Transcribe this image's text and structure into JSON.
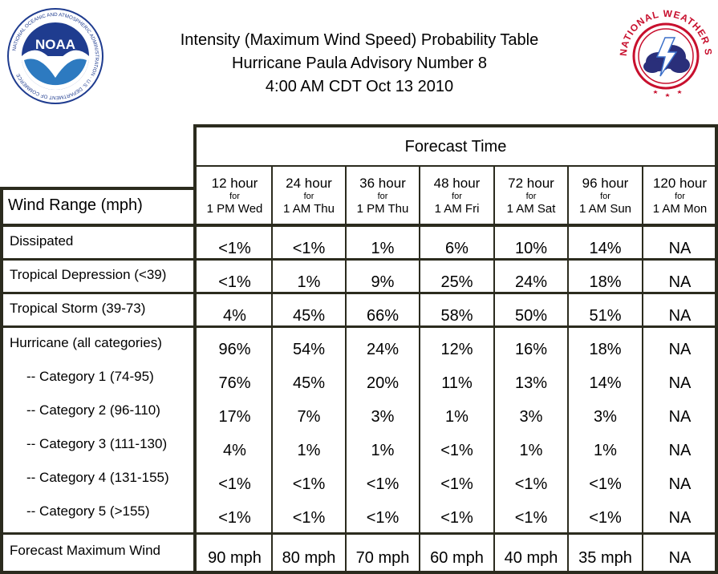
{
  "header": {
    "line1": "Intensity (Maximum Wind Speed) Probability Table",
    "line2": "Hurricane Paula Advisory Number 8",
    "line3": "4:00 AM CDT Oct 13 2010"
  },
  "logos": {
    "noaa_text_ring": "NATIONAL OCEANIC AND ATMOSPHERIC ADMINISTRATION · U.S. DEPARTMENT OF COMMERCE",
    "noaa_center": "NOAA",
    "nws_ring": "NATIONAL WEATHER SERVICE"
  },
  "table": {
    "forecast_time_label": "Forecast Time",
    "wind_range_label": "Wind Range (mph)",
    "columns": [
      {
        "hour": "12 hour",
        "for": "for",
        "when": "1 PM Wed"
      },
      {
        "hour": "24 hour",
        "for": "for",
        "when": "1 AM Thu"
      },
      {
        "hour": "36 hour",
        "for": "for",
        "when": "1 PM Thu"
      },
      {
        "hour": "48 hour",
        "for": "for",
        "when": "1 AM Fri"
      },
      {
        "hour": "72 hour",
        "for": "for",
        "when": "1 AM Sat"
      },
      {
        "hour": "96 hour",
        "for": "for",
        "when": "1 AM Sun"
      },
      {
        "hour": "120 hour",
        "for": "for",
        "when": "1 AM Mon"
      }
    ],
    "rows": [
      {
        "label": "Dissipated",
        "values": [
          "<1%",
          "<1%",
          "1%",
          "6%",
          "10%",
          "14%",
          "NA"
        ]
      },
      {
        "label": "Tropical Depression (<39)",
        "values": [
          "<1%",
          "1%",
          "9%",
          "25%",
          "24%",
          "18%",
          "NA"
        ]
      },
      {
        "label": "Tropical Storm (39-73)",
        "values": [
          "4%",
          "45%",
          "66%",
          "58%",
          "50%",
          "51%",
          "NA"
        ]
      },
      {
        "label": "Hurricane (all categories)",
        "values": [
          "96%",
          "54%",
          "24%",
          "12%",
          "16%",
          "18%",
          "NA"
        ]
      },
      {
        "label": "-- Category 1 (74-95)",
        "values": [
          "76%",
          "45%",
          "20%",
          "11%",
          "13%",
          "14%",
          "NA"
        ]
      },
      {
        "label": "-- Category 2 (96-110)",
        "values": [
          "17%",
          "7%",
          "3%",
          "1%",
          "3%",
          "3%",
          "NA"
        ]
      },
      {
        "label": "-- Category 3 (111-130)",
        "values": [
          "4%",
          "1%",
          "1%",
          "<1%",
          "1%",
          "1%",
          "NA"
        ]
      },
      {
        "label": "-- Category 4 (131-155)",
        "values": [
          "<1%",
          "<1%",
          "<1%",
          "<1%",
          "<1%",
          "<1%",
          "NA"
        ]
      },
      {
        "label": "-- Category 5 (>155)",
        "values": [
          "<1%",
          "<1%",
          "<1%",
          "<1%",
          "<1%",
          "<1%",
          "NA"
        ]
      },
      {
        "label": "Forecast Maximum Wind",
        "values": [
          "90 mph",
          "80 mph",
          "70 mph",
          "60 mph",
          "40 mph",
          "35 mph",
          "NA"
        ]
      }
    ]
  },
  "colors": {
    "border": "#2b2b1e",
    "noaa_blue": "#1f3c8f",
    "nws_red": "#c8102e"
  }
}
